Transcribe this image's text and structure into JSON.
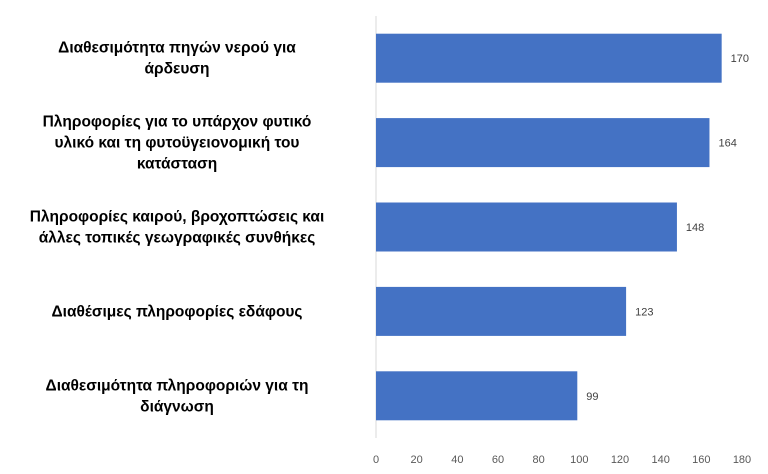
{
  "chart_data": {
    "type": "bar",
    "orientation": "horizontal",
    "categories": [
      [
        "Διαθεσιμότητα πηγών νερού για",
        "άρδευση"
      ],
      [
        "Πληροφορίες για το υπάρχον φυτικό",
        "υλικό και τη φυτοϋγειονομική του",
        "κατάσταση"
      ],
      [
        "Πληροφορίες καιρού, βροχοπτώσεις και",
        "άλλες τοπικές γεωγραφικές συνθήκες"
      ],
      [
        "Διαθέσιμες πληροφορίες εδάφους"
      ],
      [
        "Διαθεσιμότητα πληροφοριών για τη",
        "διάγνωση"
      ]
    ],
    "values": [
      170,
      164,
      148,
      123,
      99
    ],
    "data_labels": [
      "170",
      "164",
      "148",
      "123",
      "99"
    ],
    "xlim": [
      0,
      180
    ],
    "xticks": [
      "0",
      "20",
      "40",
      "60",
      "80",
      "100",
      "120",
      "140",
      "160",
      "180"
    ],
    "title": "",
    "xlabel": "",
    "ylabel": "",
    "grid": false,
    "legend": "none",
    "colors": {
      "bar": "#4472C4",
      "axis": "#d9d9d9"
    }
  }
}
